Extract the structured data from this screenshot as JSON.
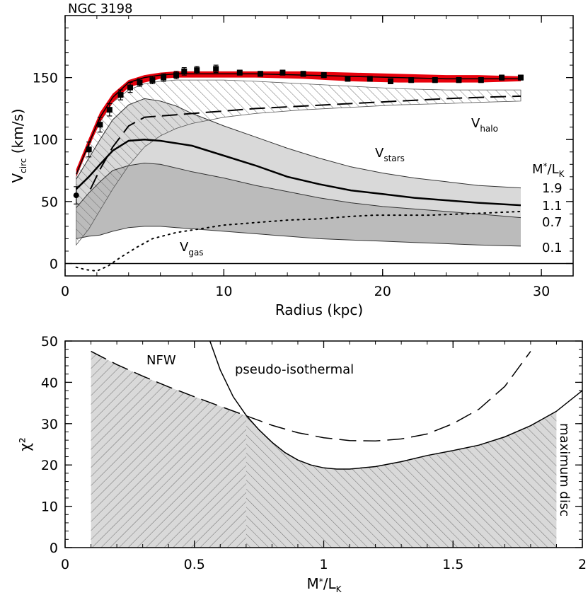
{
  "colors": {
    "accent_fit": "#e8000b",
    "band_dark": "#bbbbbb",
    "band_light": "#d9d9d9",
    "hatch": "#7a7a7a",
    "line": "#000000"
  },
  "chart_data": [
    {
      "type": "line",
      "title": "NGC 3198",
      "xlabel": "Radius (kpc)",
      "ylabel_main": "V",
      "ylabel_sub": "circ",
      "ylabel_tail": " (km/s)",
      "xlim": [
        0,
        32
      ],
      "ylim": [
        -10,
        200
      ],
      "xticks": [
        "0",
        "10",
        "20",
        "30"
      ],
      "yticks": [
        "0",
        "50",
        "100",
        "150"
      ],
      "observed": {
        "x": [
          0.7,
          1.5,
          2.2,
          2.8,
          3.5,
          4.1,
          4.7,
          5.5,
          6.2,
          7.0,
          7.5,
          8.3,
          9.5,
          11.0,
          12.3,
          13.7,
          15.0,
          16.3,
          17.8,
          19.2,
          20.5,
          21.8,
          23.3,
          24.8,
          26.2,
          27.5,
          28.7
        ],
        "y": [
          55,
          92,
          112,
          124,
          136,
          142,
          146,
          148,
          150,
          152,
          155,
          156,
          157,
          154,
          153,
          154,
          153,
          152,
          149,
          149,
          147,
          148,
          148,
          148,
          148,
          150,
          150
        ],
        "err": [
          7,
          6,
          6,
          5,
          4,
          4,
          3,
          3,
          3,
          3,
          3,
          3,
          3,
          2,
          2,
          2,
          2,
          2,
          2,
          2,
          2,
          2,
          2,
          2,
          2,
          2,
          2
        ]
      },
      "fit_band": {
        "x": [
          0.7,
          1.5,
          2.2,
          3.0,
          4.0,
          5.0,
          6.0,
          7.0,
          8.0,
          10.0,
          12.0,
          15.0,
          18.0,
          21.0,
          24.0,
          26.0,
          28.7
        ],
        "lower": [
          70,
          94,
          114,
          130,
          142,
          146,
          149,
          150,
          150,
          150,
          150,
          149,
          147,
          146,
          146,
          146,
          147
        ],
        "upper": [
          76,
          101,
          122,
          137,
          148,
          152,
          154,
          155,
          155,
          155,
          155,
          155,
          154,
          153,
          152,
          152,
          151
        ]
      },
      "best_fit_total": {
        "x": [
          0.7,
          1.5,
          2.2,
          3.0,
          4.0,
          5.0,
          6.0,
          7.0,
          8.0,
          10.0,
          12.0,
          15.0,
          18.0,
          21.0,
          24.0,
          26.0,
          28.7
        ],
        "y": [
          72,
          97,
          118,
          134,
          146,
          150,
          152,
          153,
          153,
          153,
          153,
          152,
          151,
          150,
          149,
          149,
          149
        ]
      },
      "halo_band": {
        "x": [
          0.7,
          1.5,
          2.2,
          3.0,
          4.0,
          5.0,
          6.0,
          7.0,
          8.0,
          10.0,
          12.0,
          15.0,
          18.0,
          21.0,
          24.0,
          26.0,
          28.7
        ],
        "lower": [
          15,
          28,
          43,
          60,
          79,
          94,
          103,
          109,
          113,
          118,
          121,
          124,
          126,
          128,
          129,
          130,
          131
        ],
        "upper": [
          70,
          95,
          114,
          130,
          140,
          145,
          147,
          148,
          148,
          148,
          147,
          145,
          143,
          141,
          140,
          140,
          140
        ]
      },
      "halo_best": {
        "x": [
          1.6,
          2.2,
          3.0,
          4.0,
          5.0,
          6.0,
          7.0,
          8.0,
          10.0,
          12.0,
          15.0,
          18.0,
          21.0,
          24.0,
          26.0,
          28.7
        ],
        "y": [
          60,
          76,
          94,
          111,
          118,
          119,
          120,
          121,
          123,
          125,
          127,
          129,
          131,
          133,
          134,
          135
        ]
      },
      "stars": {
        "x": [
          0.7,
          1.5,
          2.2,
          3.0,
          4.0,
          5.0,
          6.0,
          7.0,
          8.0,
          10.0,
          12.0,
          14.0,
          16.0,
          18.0,
          20.0,
          22.0,
          24.0,
          26.0,
          28.7
        ],
        "ml_0.1": [
          20,
          22,
          23,
          26,
          29,
          30,
          30,
          29,
          28,
          26,
          24,
          22,
          20,
          19,
          18,
          17,
          16,
          15,
          14
        ],
        "ml_0.7": [
          45,
          57,
          66,
          75,
          79,
          81,
          80,
          77,
          74,
          69,
          63,
          58,
          53,
          49,
          46,
          44,
          42,
          40,
          37
        ],
        "ml_1.1": [
          60,
          70,
          80,
          91,
          99,
          100,
          99,
          97,
          95,
          87,
          79,
          70,
          64,
          59,
          56,
          53,
          51,
          49,
          47
        ],
        "ml_1.9": [
          68,
          85,
          100,
          116,
          128,
          133,
          131,
          127,
          121,
          111,
          102,
          93,
          85,
          78,
          73,
          69,
          66,
          63,
          61
        ]
      },
      "gas": {
        "x": [
          0.7,
          1.3,
          2.0,
          2.7,
          3.5,
          4.5,
          5.5,
          7.0,
          8.5,
          10.0,
          12.0,
          14.0,
          16.0,
          18.0,
          19.5,
          21.0,
          23.0,
          25.0,
          27.0,
          28.7
        ],
        "y": [
          -3,
          -5,
          -6,
          -2,
          5,
          13,
          20,
          25,
          28,
          31,
          33,
          35,
          36,
          38,
          39,
          39,
          39,
          40,
          41,
          42
        ]
      },
      "annotations": {
        "v_halo_main": "V",
        "v_halo_sub": "halo",
        "v_stars_main": "V",
        "v_stars_sub": "stars",
        "v_gas_main": "V",
        "v_gas_sub": "gas",
        "ml_header_main": "M",
        "ml_header_star": "*",
        "ml_header_slash": "/L",
        "ml_header_sub": "K",
        "ml_values": [
          "1.9",
          "1.1",
          "0.7",
          "0.1"
        ]
      }
    },
    {
      "type": "line",
      "xlabel_main": "M",
      "xlabel_star": "*",
      "xlabel_slash": "/L",
      "xlabel_sub": "K",
      "ylabel": "χ²",
      "xlim": [
        0,
        2
      ],
      "ylim": [
        0,
        50
      ],
      "xticks": [
        "0",
        "0.5",
        "1",
        "1.5",
        "2"
      ],
      "yticks": [
        "0",
        "10",
        "20",
        "30",
        "40",
        "50"
      ],
      "series": [
        {
          "name": "NFW",
          "style": "dashed",
          "x": [
            0.1,
            0.2,
            0.3,
            0.4,
            0.5,
            0.6,
            0.7,
            0.8,
            0.9,
            1.0,
            1.1,
            1.2,
            1.3,
            1.4,
            1.5,
            1.6,
            1.7,
            1.8
          ],
          "y": [
            47.5,
            44.3,
            41.5,
            38.9,
            36.5,
            34.2,
            31.9,
            29.6,
            27.8,
            26.6,
            25.9,
            25.8,
            26.3,
            27.5,
            30.0,
            33.5,
            39.0,
            47.5
          ]
        },
        {
          "name": "pseudo-isothermal",
          "style": "solid",
          "x": [
            0.56,
            0.6,
            0.65,
            0.7,
            0.75,
            0.8,
            0.85,
            0.9,
            0.95,
            1.0,
            1.05,
            1.1,
            1.2,
            1.3,
            1.4,
            1.5,
            1.6,
            1.7,
            1.8,
            1.9,
            2.0
          ],
          "y": [
            50,
            43.0,
            36.5,
            32.0,
            28.5,
            25.5,
            23.0,
            21.2,
            20.0,
            19.3,
            19.0,
            19.0,
            19.6,
            20.8,
            22.3,
            23.5,
            24.8,
            26.8,
            29.5,
            33.0,
            38.0
          ]
        }
      ],
      "annotations": {
        "nfw": "NFW",
        "pseudo_isothermal": "pseudo-isothermal",
        "maximum_disc": "maximum disc"
      }
    }
  ]
}
